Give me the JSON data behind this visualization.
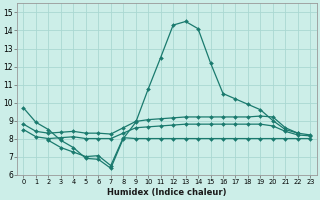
{
  "xlabel": "Humidex (Indice chaleur)",
  "xlim": [
    -0.5,
    23.5
  ],
  "ylim": [
    6,
    15.5
  ],
  "yticks": [
    6,
    7,
    8,
    9,
    10,
    11,
    12,
    13,
    14,
    15
  ],
  "xtick_labels": [
    "0",
    "1",
    "2",
    "3",
    "4",
    "5",
    "6",
    "7",
    "8",
    "9",
    "10",
    "11",
    "12",
    "13",
    "14",
    "15",
    "16",
    "17",
    "18",
    "19",
    "20",
    "21",
    "22",
    "23"
  ],
  "bg_color": "#cceee8",
  "grid_color": "#aad8d2",
  "line_color": "#1a7a6e",
  "line_width": 0.9,
  "marker": "D",
  "marker_size": 2.0,
  "series": [
    {
      "x": [
        0,
        1,
        2,
        3,
        4,
        5,
        6,
        7,
        8,
        9,
        10,
        11,
        12,
        13,
        14,
        15,
        16,
        17,
        18,
        19,
        20,
        21,
        22
      ],
      "y": [
        9.7,
        8.9,
        8.5,
        7.9,
        7.5,
        6.9,
        6.85,
        6.35,
        8.0,
        8.9,
        10.75,
        12.5,
        14.3,
        14.5,
        14.1,
        12.2,
        10.5,
        10.2,
        9.9,
        9.6,
        9.0,
        8.5,
        8.3
      ]
    },
    {
      "x": [
        0,
        1,
        2,
        3,
        4,
        5,
        6,
        7,
        8,
        9,
        10,
        11,
        12,
        13,
        14,
        15,
        16,
        17,
        18,
        19,
        20,
        21,
        22,
        23
      ],
      "y": [
        8.8,
        8.4,
        8.3,
        8.35,
        8.4,
        8.3,
        8.3,
        8.25,
        8.6,
        8.95,
        9.05,
        9.1,
        9.15,
        9.2,
        9.2,
        9.2,
        9.2,
        9.2,
        9.2,
        9.25,
        9.2,
        8.6,
        8.3,
        8.2
      ]
    },
    {
      "x": [
        0,
        1,
        2,
        3,
        4,
        5,
        6,
        7,
        8,
        9,
        10,
        11,
        12,
        13,
        14,
        15,
        16,
        17,
        18,
        19,
        20,
        21,
        22,
        23
      ],
      "y": [
        8.5,
        8.1,
        8.0,
        8.05,
        8.1,
        8.0,
        8.0,
        8.0,
        8.3,
        8.6,
        8.65,
        8.7,
        8.75,
        8.8,
        8.8,
        8.8,
        8.8,
        8.8,
        8.8,
        8.8,
        8.7,
        8.4,
        8.2,
        8.15
      ]
    },
    {
      "x": [
        2,
        3,
        4,
        5,
        6,
        7,
        8,
        9,
        10,
        11,
        12,
        13,
        14,
        15,
        16,
        17,
        18,
        19,
        20,
        21,
        22,
        23
      ],
      "y": [
        7.9,
        7.5,
        7.25,
        7.0,
        7.05,
        6.5,
        8.05,
        8.0,
        8.0,
        8.0,
        8.0,
        8.0,
        8.0,
        8.0,
        8.0,
        8.0,
        8.0,
        8.0,
        8.0,
        8.0,
        8.0,
        8.0
      ]
    }
  ]
}
